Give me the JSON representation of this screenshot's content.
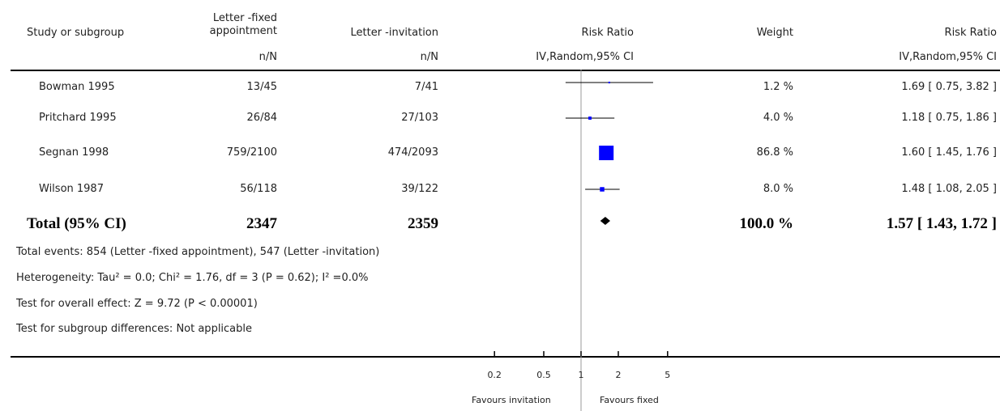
{
  "header": {
    "study": "Study or subgroup",
    "fixed_line1": "Letter -fixed",
    "fixed_line2": "appointment",
    "fixed_sub": "n/N",
    "invitation": "Letter -invitation",
    "invitation_sub": "n/N",
    "rr": "Risk Ratio",
    "rr_sub": "IV,Random,95% CI",
    "weight": "Weight",
    "rr2": "Risk Ratio",
    "rr2_sub": "IV,Random,95% CI"
  },
  "rows": [
    {
      "study": "Bowman 1995",
      "fixed": "13/45",
      "invitation": "7/41",
      "weight": "1.2 %",
      "ci": "1.69 [ 0.75, 3.82 ]"
    },
    {
      "study": "Pritchard 1995",
      "fixed": "26/84",
      "invitation": "27/103",
      "weight": "4.0 %",
      "ci": "1.18 [ 0.75, 1.86 ]"
    },
    {
      "study": "Segnan 1998",
      "fixed": "759/2100",
      "invitation": "474/2093",
      "weight": "86.8 %",
      "ci": "1.60 [ 1.45, 1.76 ]"
    },
    {
      "study": "Wilson 1987",
      "fixed": "56/118",
      "invitation": "39/122",
      "weight": "8.0 %",
      "ci": "1.48 [ 1.08, 2.05 ]"
    }
  ],
  "total": {
    "label": "Total (95% CI)",
    "fixed": "2347",
    "invitation": "2359",
    "weight": "100.0 %",
    "ci": "1.57 [ 1.43, 1.72 ]"
  },
  "notes": {
    "events": "Total events: 854 (Letter -fixed appointment), 547 (Letter -invitation)",
    "heterogeneity": "Heterogeneity: Tau² = 0.0; Chi² = 1.76, df = 3 (P = 0.62); I² =0.0%",
    "overall": "Test for overall effect: Z = 9.72 (P < 0.00001)",
    "subgroup": "Test for subgroup differences: Not applicable"
  },
  "axis": {
    "favours_left": "Favours invitation",
    "favours_right": "Favours fixed"
  },
  "chart_data": {
    "type": "forest",
    "xscale": "log",
    "xlim": [
      0.2,
      5
    ],
    "ticks": [
      0.2,
      0.5,
      1,
      2,
      5
    ],
    "tick_labels": [
      "0.2",
      "0.5",
      "1",
      "2",
      "5"
    ],
    "studies": [
      {
        "name": "Bowman 1995",
        "rr": 1.69,
        "lo": 0.75,
        "hi": 3.82,
        "weight": 1.2
      },
      {
        "name": "Pritchard 1995",
        "rr": 1.18,
        "lo": 0.75,
        "hi": 1.86,
        "weight": 4.0
      },
      {
        "name": "Segnan 1998",
        "rr": 1.6,
        "lo": 1.45,
        "hi": 1.76,
        "weight": 86.8
      },
      {
        "name": "Wilson 1987",
        "rr": 1.48,
        "lo": 1.08,
        "hi": 2.05,
        "weight": 8.0
      }
    ],
    "pooled": {
      "rr": 1.57,
      "lo": 1.43,
      "hi": 1.72
    },
    "colors": {
      "box": "#0000ff",
      "line": "#000000",
      "ref_line": "#999999"
    }
  }
}
